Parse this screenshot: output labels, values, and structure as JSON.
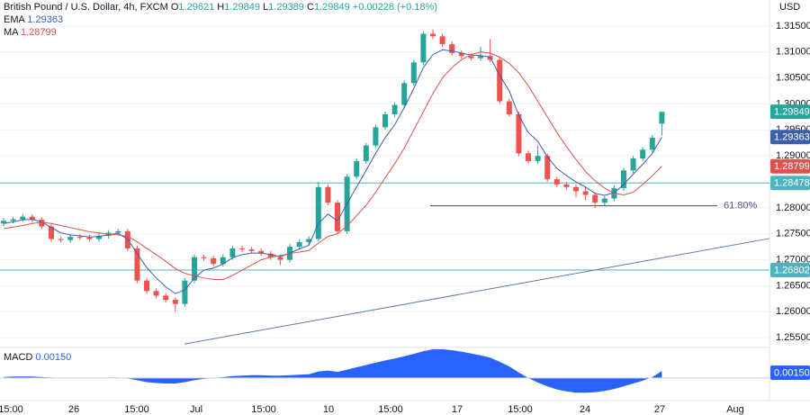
{
  "chart_data": {
    "type": "candlestick",
    "header": {
      "title": "British Pound / U.S. Dollar, 4h, FXCM",
      "fields": [
        {
          "label": "O",
          "value": 1.29621
        },
        {
          "label": "H",
          "value": 1.29849
        },
        {
          "label": "L",
          "value": 1.29389
        },
        {
          "label": "C",
          "value": 1.29849
        }
      ],
      "change": "+0.00228 (+0.18%)"
    },
    "currency": "USD",
    "up_color": "#26a69a",
    "down_color": "#ef5350",
    "open": [
      1.277,
      1.2775,
      1.2778,
      1.2783,
      1.2777,
      1.2764,
      1.274,
      1.2738,
      1.2744,
      1.2743,
      1.274,
      1.2746,
      1.2752,
      1.2755,
      1.2722,
      1.266,
      1.264,
      1.2631,
      1.2623,
      1.2615,
      1.266,
      1.2705,
      1.2703,
      1.2692,
      1.2705,
      1.2722,
      1.272,
      1.2717,
      1.2712,
      1.2705,
      1.27,
      1.2725,
      1.2734,
      1.274,
      1.284,
      1.281,
      1.2755,
      1.286,
      1.289,
      1.292,
      1.2955,
      1.298,
      1.2998,
      1.304,
      1.308,
      1.3135,
      1.313,
      1.3115,
      1.3098,
      1.3092,
      1.3088,
      1.3092,
      1.3085,
      1.3005,
      1.298,
      1.2905,
      1.289,
      1.29,
      1.2855,
      1.2845,
      1.284,
      1.2832,
      1.2825,
      1.281,
      1.2818,
      1.2838,
      1.2872,
      1.2895,
      1.2912,
      1.29621
    ],
    "high": [
      1.278,
      1.2783,
      1.2788,
      1.2788,
      1.2782,
      1.2769,
      1.2745,
      1.2749,
      1.2749,
      1.2748,
      1.2751,
      1.2757,
      1.276,
      1.276,
      1.2727,
      1.2665,
      1.2645,
      1.2636,
      1.2628,
      1.2665,
      1.271,
      1.271,
      1.2708,
      1.271,
      1.2727,
      1.2727,
      1.2725,
      1.2722,
      1.2717,
      1.271,
      1.273,
      1.2739,
      1.2745,
      1.285,
      1.2845,
      1.2815,
      1.2865,
      1.2895,
      1.2925,
      1.296,
      1.2985,
      1.3003,
      1.3045,
      1.3085,
      1.314,
      1.3143,
      1.3135,
      1.312,
      1.3103,
      1.3097,
      1.311,
      1.3125,
      1.309,
      1.301,
      1.2985,
      1.291,
      1.292,
      1.2905,
      1.286,
      1.285,
      1.2845,
      1.284,
      1.283,
      1.2823,
      1.2843,
      1.2877,
      1.29,
      1.2917,
      1.294,
      1.29849
    ],
    "low": [
      1.2765,
      1.277,
      1.2773,
      1.2772,
      1.2759,
      1.2735,
      1.2733,
      1.2733,
      1.2738,
      1.2735,
      1.2735,
      1.2741,
      1.2747,
      1.2717,
      1.2655,
      1.2635,
      1.2626,
      1.2618,
      1.26,
      1.261,
      1.2655,
      1.2698,
      1.2687,
      1.2687,
      1.27,
      1.2715,
      1.2712,
      1.2707,
      1.27,
      1.269,
      1.2695,
      1.272,
      1.2729,
      1.2735,
      1.2805,
      1.275,
      1.275,
      1.2855,
      1.2885,
      1.2915,
      1.295,
      1.2975,
      1.2993,
      1.3035,
      1.3075,
      1.3125,
      1.311,
      1.3093,
      1.3087,
      1.3083,
      1.3083,
      1.308,
      1.3,
      1.2975,
      1.29,
      1.2885,
      1.2885,
      1.285,
      1.284,
      1.2835,
      1.282,
      1.2815,
      1.28,
      1.2805,
      1.2813,
      1.2833,
      1.2867,
      1.289,
      1.2907,
      1.29389
    ],
    "close": [
      1.2775,
      1.2778,
      1.2783,
      1.2777,
      1.2764,
      1.274,
      1.2738,
      1.2744,
      1.2743,
      1.274,
      1.2746,
      1.2752,
      1.2755,
      1.2722,
      1.266,
      1.264,
      1.2631,
      1.2623,
      1.2615,
      1.266,
      1.2705,
      1.2703,
      1.2692,
      1.2705,
      1.2722,
      1.272,
      1.2717,
      1.2712,
      1.2705,
      1.27,
      1.2725,
      1.2734,
      1.274,
      1.284,
      1.281,
      1.2755,
      1.286,
      1.289,
      1.292,
      1.2955,
      1.298,
      1.2998,
      1.304,
      1.308,
      1.3135,
      1.313,
      1.3115,
      1.3098,
      1.3092,
      1.3088,
      1.3092,
      1.3085,
      1.3005,
      1.298,
      1.2905,
      1.289,
      1.29,
      1.2855,
      1.2845,
      1.284,
      1.2832,
      1.2825,
      1.281,
      1.2818,
      1.2838,
      1.2872,
      1.2895,
      1.2912,
      1.2935,
      1.29849
    ],
    "indicators": [
      {
        "name": "EMA",
        "value": 1.29363,
        "color": "#3d5fa8",
        "values": [
          1.277,
          1.2773,
          1.2777,
          1.2778,
          1.2773,
          1.2762,
          1.2752,
          1.2748,
          1.2746,
          1.2744,
          1.2745,
          1.2748,
          1.2751,
          1.274,
          1.2712,
          1.2685,
          1.2665,
          1.2648,
          1.2635,
          1.2642,
          1.2665,
          1.268,
          1.2684,
          1.2692,
          1.2704,
          1.271,
          1.2713,
          1.2713,
          1.271,
          1.2706,
          1.2713,
          1.2721,
          1.2728,
          1.277,
          1.2788,
          1.2775,
          1.2808,
          1.284,
          1.2872,
          1.2905,
          1.2935,
          1.296,
          1.2993,
          1.303,
          1.307,
          1.3095,
          1.3104,
          1.3102,
          1.3098,
          1.3094,
          1.3093,
          1.309,
          1.3055,
          1.3025,
          1.2978,
          1.2945,
          1.2928,
          1.2898,
          1.2876,
          1.2862,
          1.285,
          1.284,
          1.2828,
          1.2824,
          1.2829,
          1.2845,
          1.2865,
          1.2884,
          1.2905,
          1.2936
        ]
      },
      {
        "name": "MA",
        "value": 1.28799,
        "color": "#d9534f",
        "values": [
          1.276,
          1.2763,
          1.2766,
          1.277,
          1.2772,
          1.277,
          1.2766,
          1.2762,
          1.2758,
          1.2754,
          1.2752,
          1.2749,
          1.2748,
          1.2745,
          1.2735,
          1.2722,
          1.271,
          1.2697,
          1.2683,
          1.2674,
          1.2669,
          1.2665,
          1.2662,
          1.2662,
          1.267,
          1.268,
          1.269,
          1.27,
          1.2705,
          1.2708,
          1.2712,
          1.2715,
          1.2718,
          1.2732,
          1.2745,
          1.275,
          1.2765,
          1.2785,
          1.2805,
          1.283,
          1.2858,
          1.2885,
          1.2915,
          1.295,
          1.2985,
          1.302,
          1.305,
          1.307,
          1.3085,
          1.3095,
          1.31,
          1.3098,
          1.309,
          1.3078,
          1.306,
          1.3035,
          1.3005,
          1.2975,
          1.2945,
          1.2918,
          1.2893,
          1.287,
          1.2852,
          1.2838,
          1.2828,
          1.2825,
          1.283,
          1.2845,
          1.2862,
          1.288
        ]
      }
    ],
    "levels": [
      {
        "value": 1.28478,
        "color": "#4fb3bf"
      },
      {
        "value": 1.26802,
        "color": "#4fb3bf"
      }
    ],
    "fib": {
      "value": 1.2804,
      "label": "61.80%"
    },
    "trendline": [
      1.2538,
      1.2741
    ],
    "ylim": [
      1.2533,
      1.32
    ],
    "yticks": [
      {
        "value": 1.315,
        "label": "1.31500"
      },
      {
        "value": 1.31,
        "label": "1.31000"
      },
      {
        "value": 1.305,
        "label": "1.30500"
      },
      {
        "value": 1.3,
        "label": "1.30000"
      },
      {
        "value": 1.295,
        "label": "1.29500"
      },
      {
        "value": 1.29,
        "label": "1.29000"
      },
      {
        "value": 1.28,
        "label": "1.28000"
      },
      {
        "value": 1.275,
        "label": "1.27500"
      },
      {
        "value": 1.27,
        "label": "1.27000"
      },
      {
        "value": 1.265,
        "label": "1.26500"
      },
      {
        "value": 1.26,
        "label": "1.26000"
      },
      {
        "value": 1.255,
        "label": "1.25500"
      }
    ],
    "xlabels": [
      "15:00",
      "26",
      "15:00",
      "Jul",
      "15:00",
      "10",
      "15:00",
      "17",
      "15:00",
      "24",
      "27",
      "Aug"
    ],
    "macd": {
      "name": "MACD",
      "value": {
        "value": 0.0015,
        "label": "0.00150"
      },
      "color": "#2962ff",
      "ylim": [
        -0.0049,
        0.0064
      ],
      "values": [
        0.0002,
        0.0003,
        0.0003,
        0.0003,
        0.0002,
        0.0001,
        0.0,
        0.0,
        0.0,
        0.0,
        0.0,
        0.0001,
        0.0001,
        -0.0001,
        -0.0005,
        -0.0009,
        -0.0011,
        -0.0012,
        -0.0012,
        -0.0009,
        -0.0005,
        -0.0002,
        0.0,
        0.0002,
        0.0004,
        0.0005,
        0.0006,
        0.0006,
        0.0005,
        0.0005,
        0.0006,
        0.0007,
        0.0008,
        0.0014,
        0.0016,
        0.0013,
        0.0018,
        0.0023,
        0.0028,
        0.0033,
        0.0038,
        0.0042,
        0.0047,
        0.0052,
        0.0058,
        0.0062,
        0.0062,
        0.006,
        0.0057,
        0.0053,
        0.0049,
        0.0044,
        0.0035,
        0.0025,
        0.0012,
        0.0,
        -0.001,
        -0.0018,
        -0.0025,
        -0.0029,
        -0.0032,
        -0.0032,
        -0.0031,
        -0.0028,
        -0.0024,
        -0.0018,
        -0.0012,
        -0.0006,
        0.0002,
        0.0015
      ]
    }
  }
}
